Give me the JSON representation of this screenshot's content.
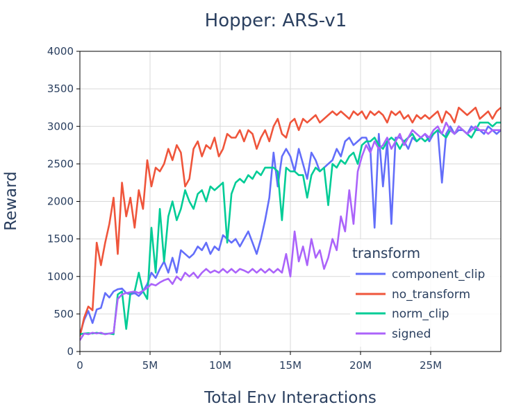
{
  "chart_data": {
    "type": "line",
    "title": "Hopper: ARS-v1",
    "xlabel": "Total Env Interactions",
    "ylabel": "Reward",
    "xlim": [
      0,
      30000000
    ],
    "ylim": [
      0,
      4000
    ],
    "x_ticks": [
      {
        "value": 0,
        "label": "0"
      },
      {
        "value": 5000000,
        "label": "5M"
      },
      {
        "value": 10000000,
        "label": "10M"
      },
      {
        "value": 15000000,
        "label": "15M"
      },
      {
        "value": 20000000,
        "label": "20M"
      },
      {
        "value": 25000000,
        "label": "25M"
      }
    ],
    "y_ticks": [
      {
        "value": 0,
        "label": "0"
      },
      {
        "value": 500,
        "label": "500"
      },
      {
        "value": 1000,
        "label": "1000"
      },
      {
        "value": 1500,
        "label": "1500"
      },
      {
        "value": 2000,
        "label": "2000"
      },
      {
        "value": 2500,
        "label": "2500"
      },
      {
        "value": 3000,
        "label": "3000"
      },
      {
        "value": 3500,
        "label": "3500"
      },
      {
        "value": 4000,
        "label": "4000"
      }
    ],
    "grid": true,
    "legend": {
      "title": "transform",
      "position": "bottom-right"
    },
    "series": [
      {
        "name": "component_clip",
        "color": "#636efa",
        "x": [
          0,
          0.3,
          0.6,
          0.9,
          1.2,
          1.5,
          1.8,
          2.1,
          2.4,
          2.7,
          3.0,
          3.3,
          3.6,
          3.9,
          4.2,
          4.5,
          4.8,
          5.1,
          5.4,
          5.7,
          6.0,
          6.3,
          6.6,
          6.9,
          7.2,
          7.5,
          7.8,
          8.1,
          8.4,
          8.7,
          9.0,
          9.3,
          9.6,
          9.9,
          10.2,
          10.5,
          10.8,
          11.1,
          11.4,
          11.7,
          12.0,
          12.3,
          12.6,
          12.9,
          13.2,
          13.5,
          13.8,
          14.1,
          14.4,
          14.7,
          15.0,
          15.3,
          15.6,
          15.9,
          16.2,
          16.5,
          16.8,
          17.1,
          17.4,
          17.7,
          18.0,
          18.3,
          18.6,
          18.9,
          19.2,
          19.5,
          19.8,
          20.1,
          20.4,
          20.7,
          21.0,
          21.3,
          21.6,
          21.9,
          22.2,
          22.5,
          22.8,
          23.1,
          23.4,
          23.7,
          24.0,
          24.3,
          24.6,
          24.9,
          25.2,
          25.5,
          25.8,
          26.1,
          26.4,
          26.7,
          27.0,
          27.3,
          27.6,
          27.9,
          28.2,
          28.5,
          28.8,
          29.1,
          29.4,
          29.7,
          30.0
        ],
        "y": [
          230,
          420,
          540,
          380,
          560,
          580,
          780,
          720,
          800,
          830,
          840,
          780,
          760,
          780,
          740,
          800,
          900,
          1050,
          980,
          1100,
          1200,
          1050,
          1250,
          1050,
          1350,
          1300,
          1250,
          1300,
          1400,
          1350,
          1450,
          1300,
          1400,
          1350,
          1550,
          1500,
          1450,
          1500,
          1400,
          1500,
          1600,
          1450,
          1300,
          1500,
          1750,
          2050,
          2650,
          2200,
          2600,
          2700,
          2600,
          2400,
          2700,
          2500,
          2300,
          2650,
          2550,
          2400,
          2450,
          2500,
          2550,
          2700,
          2600,
          2800,
          2850,
          2750,
          2800,
          2850,
          2850,
          2700,
          1650,
          2900,
          2200,
          2800,
          1700,
          2850,
          2850,
          2800,
          2700,
          2850,
          2800,
          2850,
          2900,
          2800,
          2900,
          2950,
          2250,
          2900,
          3000,
          2900,
          2950,
          2950,
          2900,
          3000,
          2950,
          2950,
          2900,
          3000,
          2950,
          2900,
          2950
        ]
      },
      {
        "name": "no_transform",
        "color": "#ef553b",
        "x": [
          0,
          0.3,
          0.6,
          0.9,
          1.2,
          1.5,
          1.8,
          2.1,
          2.4,
          2.7,
          3.0,
          3.3,
          3.6,
          3.9,
          4.2,
          4.5,
          4.8,
          5.1,
          5.4,
          5.7,
          6.0,
          6.3,
          6.6,
          6.9,
          7.2,
          7.5,
          7.8,
          8.1,
          8.4,
          8.7,
          9.0,
          9.3,
          9.6,
          9.9,
          10.2,
          10.5,
          10.8,
          11.1,
          11.4,
          11.7,
          12.0,
          12.3,
          12.6,
          12.9,
          13.2,
          13.5,
          13.8,
          14.1,
          14.4,
          14.7,
          15.0,
          15.3,
          15.6,
          15.9,
          16.2,
          16.5,
          16.8,
          17.1,
          17.4,
          17.7,
          18.0,
          18.3,
          18.6,
          18.9,
          19.2,
          19.5,
          19.8,
          20.1,
          20.4,
          20.7,
          21.0,
          21.3,
          21.6,
          21.9,
          22.2,
          22.5,
          22.8,
          23.1,
          23.4,
          23.7,
          24.0,
          24.3,
          24.6,
          24.9,
          25.2,
          25.5,
          25.8,
          26.1,
          26.4,
          26.7,
          27.0,
          27.3,
          27.6,
          27.9,
          28.2,
          28.5,
          28.8,
          29.1,
          29.4,
          29.7,
          30.0
        ],
        "y": [
          200,
          450,
          600,
          550,
          1450,
          1150,
          1450,
          1700,
          2050,
          1300,
          2250,
          1800,
          2050,
          1650,
          2150,
          1900,
          2550,
          2200,
          2450,
          2400,
          2500,
          2700,
          2550,
          2750,
          2650,
          2200,
          2300,
          2700,
          2800,
          2600,
          2750,
          2700,
          2850,
          2600,
          2700,
          2900,
          2850,
          2850,
          2950,
          2800,
          2950,
          2900,
          2700,
          2850,
          2950,
          2800,
          3000,
          3100,
          2900,
          2850,
          3050,
          3100,
          2950,
          3100,
          3050,
          3100,
          3150,
          3050,
          3100,
          3150,
          3200,
          3150,
          3200,
          3150,
          3100,
          3200,
          3150,
          3200,
          3100,
          3200,
          3150,
          3200,
          3150,
          3050,
          3200,
          3150,
          3200,
          3100,
          3150,
          3050,
          3150,
          3100,
          3150,
          3100,
          3150,
          3200,
          3050,
          3200,
          3150,
          3050,
          3250,
          3200,
          3150,
          3200,
          3250,
          3100,
          3150,
          3200,
          3100,
          3200,
          3250
        ]
      },
      {
        "name": "norm_clip",
        "color": "#00cc96",
        "x": [
          0,
          0.3,
          0.6,
          0.9,
          1.2,
          1.5,
          1.8,
          2.1,
          2.4,
          2.7,
          3.0,
          3.3,
          3.6,
          3.9,
          4.2,
          4.5,
          4.8,
          5.1,
          5.4,
          5.7,
          6.0,
          6.3,
          6.6,
          6.9,
          7.2,
          7.5,
          7.8,
          8.1,
          8.4,
          8.7,
          9.0,
          9.3,
          9.6,
          9.9,
          10.2,
          10.5,
          10.8,
          11.1,
          11.4,
          11.7,
          12.0,
          12.3,
          12.6,
          12.9,
          13.2,
          13.5,
          13.8,
          14.1,
          14.4,
          14.7,
          15.0,
          15.3,
          15.6,
          15.9,
          16.2,
          16.5,
          16.8,
          17.1,
          17.4,
          17.7,
          18.0,
          18.3,
          18.6,
          18.9,
          19.2,
          19.5,
          19.8,
          20.1,
          20.4,
          20.7,
          21.0,
          21.3,
          21.6,
          21.9,
          22.2,
          22.5,
          22.8,
          23.1,
          23.4,
          23.7,
          24.0,
          24.3,
          24.6,
          24.9,
          25.2,
          25.5,
          25.8,
          26.1,
          26.4,
          26.7,
          27.0,
          27.3,
          27.6,
          27.9,
          28.2,
          28.5,
          28.8,
          29.1,
          29.4,
          29.7,
          30.0
        ],
        "y": [
          230,
          240,
          245,
          240,
          250,
          240,
          235,
          240,
          230,
          760,
          800,
          300,
          780,
          800,
          1050,
          800,
          700,
          1650,
          1050,
          1900,
          1200,
          1800,
          2000,
          1750,
          1900,
          2150,
          2000,
          1900,
          2100,
          2150,
          2000,
          2200,
          2150,
          2200,
          2250,
          1450,
          2100,
          2250,
          2300,
          2250,
          2350,
          2300,
          2400,
          2350,
          2450,
          2450,
          2450,
          2400,
          1750,
          2450,
          2400,
          2400,
          2350,
          2350,
          2050,
          2350,
          2450,
          2400,
          2450,
          1950,
          2500,
          2450,
          2550,
          2500,
          2600,
          2650,
          2500,
          2750,
          2800,
          2800,
          2850,
          2750,
          2700,
          2800,
          2850,
          2800,
          2700,
          2800,
          2850,
          2900,
          2800,
          2850,
          2800,
          2850,
          2900,
          2950,
          2900,
          2850,
          2950,
          2900,
          3000,
          2950,
          2900,
          2850,
          2950,
          3050,
          3050,
          3050,
          3000,
          3050,
          3050
        ]
      },
      {
        "name": "signed",
        "color": "#ab63fa",
        "x": [
          0,
          0.3,
          0.6,
          0.9,
          1.2,
          1.5,
          1.8,
          2.1,
          2.4,
          2.7,
          3.0,
          3.3,
          3.6,
          3.9,
          4.2,
          4.5,
          4.8,
          5.1,
          5.4,
          5.7,
          6.0,
          6.3,
          6.6,
          6.9,
          7.2,
          7.5,
          7.8,
          8.1,
          8.4,
          8.7,
          9.0,
          9.3,
          9.6,
          9.9,
          10.2,
          10.5,
          10.8,
          11.1,
          11.4,
          11.7,
          12.0,
          12.3,
          12.6,
          12.9,
          13.2,
          13.5,
          13.8,
          14.1,
          14.4,
          14.7,
          15.0,
          15.3,
          15.6,
          15.9,
          16.2,
          16.5,
          16.8,
          17.1,
          17.4,
          17.7,
          18.0,
          18.3,
          18.6,
          18.9,
          19.2,
          19.5,
          19.8,
          20.1,
          20.4,
          20.7,
          21.0,
          21.3,
          21.6,
          21.9,
          22.2,
          22.5,
          22.8,
          23.1,
          23.4,
          23.7,
          24.0,
          24.3,
          24.6,
          24.9,
          25.2,
          25.5,
          25.8,
          26.1,
          26.4,
          26.7,
          27.0,
          27.3,
          27.6,
          27.9,
          28.2,
          28.5,
          28.8,
          29.1,
          29.4,
          29.7,
          30.0
        ],
        "y": [
          150,
          240,
          230,
          250,
          240,
          250,
          230,
          240,
          250,
          700,
          760,
          780,
          790,
          800,
          780,
          810,
          850,
          900,
          880,
          920,
          950,
          970,
          900,
          1000,
          950,
          1050,
          1000,
          1050,
          980,
          1050,
          1100,
          1050,
          1080,
          1050,
          1100,
          1050,
          1100,
          1050,
          1100,
          1080,
          1050,
          1100,
          1050,
          1100,
          1050,
          1100,
          1050,
          1100,
          1050,
          1300,
          1000,
          1600,
          1200,
          1400,
          1150,
          1500,
          1250,
          1350,
          1100,
          1250,
          1500,
          1350,
          1800,
          1600,
          2150,
          1700,
          2400,
          2600,
          2750,
          2650,
          2800,
          2700,
          2750,
          2850,
          2700,
          2800,
          2900,
          2750,
          2850,
          2950,
          2900,
          2850,
          2900,
          2850,
          2950,
          3000,
          2900,
          3050,
          2950,
          2900,
          3000,
          2950,
          2900,
          2950,
          3000,
          2950,
          2950,
          2900,
          2950,
          2950,
          2950
        ]
      }
    ]
  }
}
